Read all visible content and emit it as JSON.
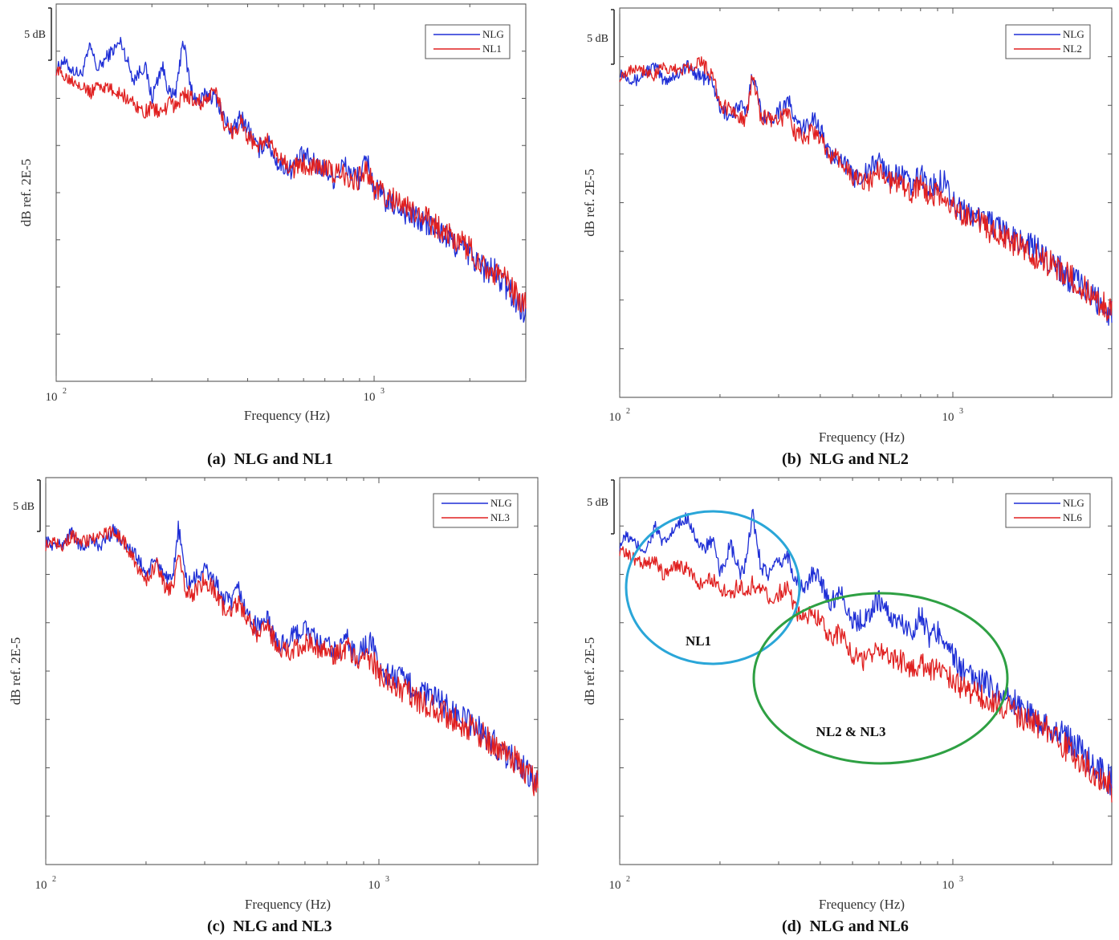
{
  "figure": {
    "captions": [
      "(a)  NLG and NL1",
      "(b)  NLG and NL2",
      "(c)  NLG and NL3",
      "(d)  NLG and NL6"
    ]
  },
  "chart_data": [
    {
      "type": "line",
      "caption": "(a)  NLG and NL1",
      "xlabel": "Frequency (Hz)",
      "ylabel": "dB ref. 2E-5",
      "scale_bar_label": "5 dB",
      "x_scale": "log",
      "xlim": [
        100,
        3000
      ],
      "ylim": [
        55,
        95
      ],
      "x_ticks": [
        100,
        1000
      ],
      "x_tick_labels": [
        "10",
        "10"
      ],
      "x_tick_exponents": [
        "2",
        "3"
      ],
      "legend_position": "top-right",
      "series": [
        {
          "name": "NLG",
          "color": "#1f2fd6",
          "x": [
            100,
            105,
            112,
            120,
            128,
            135,
            145,
            160,
            175,
            190,
            200,
            215,
            230,
            240,
            250,
            265,
            280,
            300,
            320,
            340,
            360,
            380,
            400,
            430,
            460,
            500,
            550,
            600,
            650,
            700,
            750,
            800,
            850,
            900,
            950,
            1000,
            1100,
            1200,
            1300,
            1400,
            1500,
            1650,
            1800,
            2000,
            2200,
            2400,
            2600,
            2800,
            3000
          ],
          "y": [
            88.0,
            89.0,
            88.0,
            87.5,
            90.5,
            88.0,
            89.5,
            91.0,
            87.0,
            88.5,
            85.0,
            88.5,
            85.0,
            86.0,
            91.5,
            86.0,
            84.5,
            85.5,
            85.0,
            82.5,
            81.5,
            83.0,
            82.0,
            79.5,
            80.5,
            78.0,
            77.5,
            79.0,
            78.0,
            77.5,
            76.5,
            78.0,
            77.0,
            76.5,
            78.5,
            75.5,
            74.0,
            73.5,
            72.5,
            72.0,
            71.5,
            70.5,
            69.5,
            68.5,
            67.0,
            66.5,
            65.0,
            63.5,
            62.5
          ]
        },
        {
          "name": "NL1",
          "color": "#e02020",
          "x": [
            100,
            105,
            112,
            120,
            128,
            135,
            145,
            160,
            175,
            190,
            200,
            215,
            230,
            240,
            250,
            265,
            280,
            300,
            320,
            340,
            360,
            380,
            400,
            430,
            460,
            500,
            550,
            600,
            650,
            700,
            750,
            800,
            850,
            900,
            950,
            1000,
            1100,
            1200,
            1300,
            1400,
            1500,
            1650,
            1800,
            2000,
            2200,
            2400,
            2600,
            2800,
            3000
          ],
          "y": [
            88.0,
            87.5,
            87.0,
            86.5,
            85.5,
            86.5,
            86.0,
            85.5,
            84.5,
            83.5,
            84.0,
            83.5,
            84.5,
            84.0,
            85.5,
            85.0,
            84.5,
            85.0,
            85.5,
            82.0,
            81.5,
            82.5,
            81.0,
            80.0,
            80.5,
            78.5,
            77.5,
            78.0,
            78.0,
            77.5,
            77.0,
            77.0,
            76.5,
            76.5,
            77.5,
            75.5,
            74.5,
            74.0,
            73.0,
            72.5,
            72.0,
            71.0,
            70.0,
            69.0,
            67.5,
            66.5,
            65.5,
            64.0,
            63.0
          ]
        }
      ]
    },
    {
      "type": "line",
      "caption": "(b)  NLG and NL2",
      "xlabel": "Frequency (Hz)",
      "ylabel": "dB ref. 2E-5",
      "scale_bar_label": "5 dB",
      "x_scale": "log",
      "xlim": [
        100,
        3000
      ],
      "ylim": [
        55,
        95
      ],
      "x_ticks": [
        100,
        1000
      ],
      "x_tick_labels": [
        "10",
        "10"
      ],
      "x_tick_exponents": [
        "2",
        "3"
      ],
      "legend_position": "top-right",
      "series": [
        {
          "name": "NLG",
          "color": "#1f2fd6",
          "x": [
            100,
            105,
            112,
            120,
            128,
            135,
            145,
            160,
            175,
            190,
            200,
            215,
            230,
            240,
            250,
            265,
            280,
            300,
            320,
            340,
            360,
            380,
            400,
            430,
            460,
            500,
            550,
            600,
            650,
            700,
            750,
            800,
            850,
            900,
            950,
            1000,
            1100,
            1200,
            1300,
            1400,
            1500,
            1650,
            1800,
            2000,
            2200,
            2400,
            2600,
            2800,
            3000
          ],
          "y": [
            88.5,
            88.0,
            87.5,
            88.5,
            89.0,
            87.5,
            88.0,
            89.0,
            88.0,
            87.5,
            84.5,
            84.0,
            85.0,
            84.0,
            88.5,
            84.5,
            83.5,
            84.5,
            85.5,
            83.0,
            82.5,
            84.0,
            82.5,
            79.5,
            80.0,
            77.5,
            78.0,
            79.5,
            77.5,
            78.0,
            76.5,
            78.0,
            76.5,
            77.0,
            77.5,
            75.0,
            74.0,
            73.5,
            73.0,
            72.0,
            71.5,
            71.0,
            70.0,
            69.0,
            67.5,
            66.5,
            65.5,
            64.5,
            63.5
          ]
        },
        {
          "name": "NL2",
          "color": "#e02020",
          "x": [
            100,
            105,
            112,
            120,
            128,
            135,
            145,
            160,
            175,
            190,
            200,
            215,
            230,
            240,
            250,
            265,
            280,
            300,
            320,
            340,
            360,
            380,
            400,
            430,
            460,
            500,
            550,
            600,
            650,
            700,
            750,
            800,
            850,
            900,
            950,
            1000,
            1100,
            1200,
            1300,
            1400,
            1500,
            1650,
            1800,
            2000,
            2200,
            2400,
            2600,
            2800,
            3000
          ],
          "y": [
            88.0,
            88.5,
            89.0,
            88.5,
            88.0,
            89.0,
            88.5,
            89.0,
            89.5,
            88.0,
            85.0,
            84.5,
            84.0,
            83.5,
            88.0,
            84.0,
            83.5,
            83.5,
            84.0,
            82.0,
            81.5,
            82.5,
            81.5,
            79.5,
            79.5,
            77.5,
            77.0,
            78.5,
            77.0,
            77.0,
            76.0,
            77.0,
            75.5,
            76.0,
            75.0,
            74.5,
            73.5,
            73.0,
            72.0,
            71.5,
            71.0,
            70.0,
            69.5,
            68.5,
            67.5,
            66.5,
            65.5,
            64.5,
            63.5
          ]
        }
      ]
    },
    {
      "type": "line",
      "caption": "(c)  NLG and NL3",
      "xlabel": "Frequency (Hz)",
      "ylabel": "dB ref. 2E-5",
      "scale_bar_label": "5 dB",
      "x_scale": "log",
      "xlim": [
        100,
        3000
      ],
      "ylim": [
        55,
        95
      ],
      "x_ticks": [
        100,
        1000
      ],
      "x_tick_labels": [
        "10",
        "10"
      ],
      "x_tick_exponents": [
        "2",
        "3"
      ],
      "legend_position": "top-right",
      "series": [
        {
          "name": "NLG",
          "color": "#1f2fd6",
          "x": [
            100,
            105,
            112,
            120,
            128,
            135,
            145,
            160,
            175,
            190,
            200,
            215,
            230,
            240,
            250,
            265,
            280,
            300,
            320,
            340,
            360,
            380,
            400,
            430,
            460,
            500,
            550,
            600,
            650,
            700,
            750,
            800,
            850,
            900,
            950,
            1000,
            1100,
            1200,
            1300,
            1400,
            1500,
            1650,
            1800,
            2000,
            2200,
            2400,
            2600,
            2800,
            3000
          ],
          "y": [
            88.5,
            88.0,
            88.0,
            89.5,
            87.5,
            88.5,
            88.0,
            89.5,
            88.0,
            86.5,
            85.0,
            86.5,
            84.5,
            84.0,
            90.0,
            84.0,
            84.5,
            85.5,
            84.5,
            82.5,
            82.0,
            83.5,
            81.0,
            79.5,
            80.5,
            77.5,
            78.5,
            79.5,
            78.0,
            77.5,
            77.0,
            78.5,
            76.5,
            77.5,
            78.0,
            75.0,
            74.5,
            74.0,
            73.0,
            72.5,
            72.0,
            71.0,
            70.0,
            69.0,
            67.5,
            66.5,
            65.5,
            64.5,
            63.5
          ]
        },
        {
          "name": "NL3",
          "color": "#e02020",
          "x": [
            100,
            105,
            112,
            120,
            128,
            135,
            145,
            160,
            175,
            190,
            200,
            215,
            230,
            240,
            250,
            265,
            280,
            300,
            320,
            340,
            360,
            380,
            400,
            430,
            460,
            500,
            550,
            600,
            650,
            700,
            750,
            800,
            850,
            900,
            950,
            1000,
            1100,
            1200,
            1300,
            1400,
            1500,
            1650,
            1800,
            2000,
            2200,
            2400,
            2600,
            2800,
            3000
          ],
          "y": [
            88.0,
            88.5,
            88.0,
            89.0,
            88.5,
            88.5,
            89.0,
            89.5,
            88.0,
            85.5,
            84.5,
            86.0,
            83.5,
            83.5,
            87.5,
            83.0,
            83.0,
            84.5,
            83.5,
            81.5,
            81.5,
            82.0,
            80.5,
            79.0,
            79.5,
            77.5,
            77.0,
            78.0,
            77.5,
            77.0,
            76.5,
            77.5,
            76.0,
            76.0,
            76.5,
            74.5,
            73.5,
            73.0,
            72.0,
            71.5,
            71.0,
            70.0,
            69.5,
            68.5,
            67.5,
            66.5,
            65.5,
            64.5,
            63.0
          ]
        }
      ]
    },
    {
      "type": "line",
      "caption": "(d)  NLG and NL6",
      "xlabel": "Frequency (Hz)",
      "ylabel": "dB ref. 2E-5",
      "scale_bar_label": "5 dB",
      "x_scale": "log",
      "xlim": [
        100,
        3000
      ],
      "ylim": [
        55,
        95
      ],
      "x_ticks": [
        100,
        1000
      ],
      "x_tick_labels": [
        "10",
        "10"
      ],
      "x_tick_exponents": [
        "2",
        "3"
      ],
      "legend_position": "top-right",
      "annotations": [
        {
          "text": "NL1",
          "color": "#2aa6d8"
        },
        {
          "text": "NL2 & NL3",
          "color": "#2ea043"
        }
      ],
      "series": [
        {
          "name": "NLG",
          "color": "#1f2fd6",
          "x": [
            100,
            105,
            112,
            120,
            128,
            135,
            145,
            160,
            175,
            190,
            200,
            215,
            230,
            240,
            250,
            265,
            280,
            300,
            320,
            340,
            360,
            380,
            400,
            430,
            460,
            500,
            550,
            600,
            650,
            700,
            750,
            800,
            850,
            900,
            950,
            1000,
            1100,
            1200,
            1300,
            1400,
            1500,
            1650,
            1800,
            2000,
            2200,
            2400,
            2600,
            2800,
            3000
          ],
          "y": [
            88.0,
            89.0,
            88.0,
            87.5,
            90.0,
            88.0,
            89.5,
            91.0,
            87.5,
            88.5,
            85.0,
            88.0,
            85.0,
            86.0,
            91.5,
            86.0,
            85.0,
            86.0,
            87.0,
            84.0,
            83.5,
            85.0,
            84.5,
            82.0,
            83.5,
            80.0,
            80.5,
            82.5,
            80.5,
            80.0,
            79.0,
            81.0,
            78.5,
            79.0,
            78.5,
            76.5,
            74.5,
            74.0,
            73.5,
            72.5,
            72.0,
            71.0,
            70.0,
            69.0,
            68.0,
            67.0,
            65.5,
            64.5,
            63.5
          ]
        },
        {
          "name": "NL6",
          "color": "#e02020",
          "x": [
            100,
            105,
            112,
            120,
            128,
            135,
            145,
            160,
            175,
            190,
            200,
            215,
            230,
            240,
            250,
            265,
            280,
            300,
            320,
            340,
            360,
            380,
            400,
            430,
            460,
            500,
            550,
            600,
            650,
            700,
            750,
            800,
            850,
            900,
            950,
            1000,
            1100,
            1200,
            1300,
            1400,
            1500,
            1650,
            1800,
            2000,
            2200,
            2400,
            2600,
            2800,
            3000
          ],
          "y": [
            87.5,
            87.0,
            86.5,
            86.0,
            86.5,
            85.0,
            86.0,
            85.5,
            84.0,
            84.5,
            83.5,
            83.0,
            84.0,
            83.0,
            84.0,
            83.5,
            82.5,
            83.0,
            83.5,
            81.0,
            80.5,
            81.5,
            80.0,
            78.5,
            79.0,
            76.5,
            76.0,
            77.5,
            76.5,
            76.0,
            75.0,
            76.0,
            75.0,
            75.5,
            75.0,
            74.0,
            73.0,
            72.5,
            72.0,
            71.5,
            71.0,
            70.0,
            69.5,
            68.5,
            67.0,
            66.0,
            65.0,
            64.0,
            63.0
          ]
        }
      ]
    }
  ]
}
